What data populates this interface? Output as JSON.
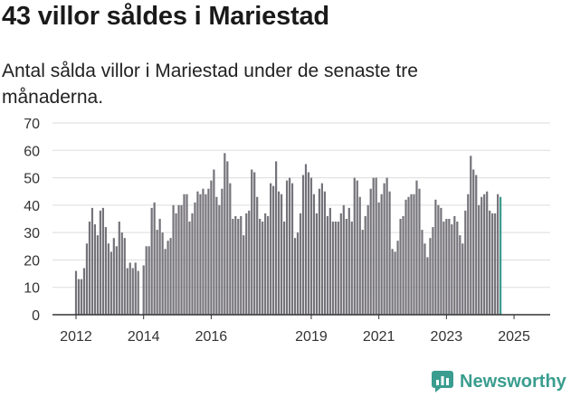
{
  "header": {
    "title": "43 villor såldes i Mariestad",
    "subtitle": "Antal sålda villor i Mariestad under de senaste tre månaderna."
  },
  "brand": {
    "name": "Newsworthy",
    "color": "#3a9d8f"
  },
  "colors": {
    "bar": "#75737a",
    "highlight": "#3a9d8f",
    "grid": "#dddddd",
    "axis": "#333333"
  },
  "chart_data": {
    "type": "bar",
    "title": "43 villor såldes i Mariestad",
    "subtitle": "Antal sålda villor i Mariestad under de senaste tre månaderna.",
    "xlabel": "",
    "ylabel": "",
    "ylim": [
      0,
      70
    ],
    "yticks": [
      0,
      10,
      20,
      30,
      40,
      50,
      60,
      70
    ],
    "grid": true,
    "x_tick_labels": [
      "2012",
      "2014",
      "2016",
      "2019",
      "2021",
      "2023",
      "2025"
    ],
    "x_tick_bar_index": [
      0,
      25,
      50,
      87,
      112,
      137,
      162
    ],
    "annotation": {
      "label": "43",
      "bar_index": 166
    },
    "values": [
      16,
      13,
      13,
      17,
      26,
      34,
      39,
      33,
      29,
      38,
      39,
      32,
      26,
      23,
      28,
      25,
      34,
      30,
      28,
      17,
      19,
      17,
      19,
      16,
      0,
      18,
      25,
      25,
      39,
      41,
      31,
      35,
      30,
      24,
      27,
      28,
      40,
      37,
      40,
      40,
      44,
      44,
      34,
      37,
      41,
      45,
      44,
      46,
      44,
      46,
      49,
      53,
      43,
      40,
      46,
      59,
      56,
      48,
      35,
      36,
      35,
      36,
      29,
      37,
      38,
      53,
      52,
      43,
      35,
      34,
      37,
      36,
      48,
      47,
      56,
      45,
      44,
      34,
      49,
      50,
      48,
      28,
      30,
      37,
      51,
      55,
      52,
      50,
      44,
      37,
      46,
      48,
      45,
      36,
      39,
      34,
      34,
      34,
      37,
      40,
      35,
      39,
      34,
      50,
      49,
      43,
      31,
      36,
      40,
      46,
      50,
      50,
      41,
      44,
      48,
      50,
      45,
      24,
      23,
      27,
      35,
      36,
      42,
      43,
      44,
      44,
      49,
      46,
      31,
      26,
      21,
      28,
      32,
      42,
      40,
      39,
      34,
      35,
      35,
      33,
      36,
      34,
      29,
      26,
      38,
      44,
      58,
      53,
      51,
      40,
      43,
      44,
      45,
      38,
      37,
      37,
      44,
      43
    ]
  }
}
